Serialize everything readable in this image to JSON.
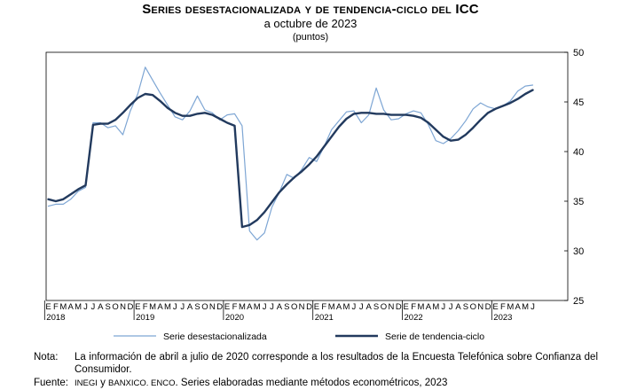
{
  "title": "Series desestacionalizada y de tendencia-ciclo del ICC",
  "subtitle": "a octubre de 2023",
  "units": "(puntos)",
  "note": {
    "label": "Nota:",
    "text": "La información de abril a julio de 2020 corresponde a los resultados de la Encuesta Telefónica sobre Confianza del Consumidor."
  },
  "source": {
    "label": "Fuente:",
    "org1": "INEGI",
    "conj": " y ",
    "org2": "BANXICO. ENCO",
    "text": ". Series elaboradas mediante métodos econométricos, 2023"
  },
  "colors": {
    "seasonal": "#7ea6d4",
    "trend": "#223a5e",
    "axis": "#000000"
  },
  "chart_data": {
    "type": "line",
    "yticks": [
      25,
      30,
      35,
      40,
      45,
      50
    ],
    "ylim": [
      25,
      50
    ],
    "month_letters": [
      "E",
      "F",
      "M",
      "A",
      "M",
      "J",
      "J",
      "A",
      "S",
      "O",
      "N",
      "D"
    ],
    "years": [
      "2018",
      "2019",
      "2020",
      "2021",
      "2022",
      "2023"
    ],
    "x_start": "2018-01",
    "x_end": "2023-10",
    "legend_position": "bottom",
    "series": [
      {
        "name": "Serie desestacionalizada",
        "style": "thin",
        "values": [
          34.5,
          34.7,
          34.7,
          35.2,
          36.0,
          36.4,
          42.9,
          42.9,
          42.4,
          42.6,
          41.7,
          44.1,
          45.8,
          48.5,
          47.2,
          45.9,
          44.7,
          43.5,
          43.2,
          44.1,
          45.6,
          44.2,
          43.9,
          43.2,
          43.7,
          43.8,
          42.6,
          32.0,
          31.1,
          31.8,
          34.4,
          35.9,
          37.7,
          37.3,
          38.2,
          39.4,
          39.0,
          40.5,
          42.2,
          43.1,
          44.0,
          44.1,
          42.9,
          43.7,
          46.4,
          44.2,
          43.2,
          43.3,
          43.8,
          44.1,
          43.9,
          42.7,
          41.1,
          40.8,
          41.3,
          42.1,
          43.1,
          44.3,
          44.9,
          44.5,
          44.3,
          44.6,
          45.1,
          46.1,
          46.6,
          46.7
        ]
      },
      {
        "name": "Serie de tendencia-ciclo",
        "style": "thick",
        "values": [
          35.2,
          35.0,
          35.2,
          35.7,
          36.2,
          36.6,
          42.7,
          42.8,
          42.8,
          43.2,
          43.9,
          44.7,
          45.4,
          45.8,
          45.7,
          45.1,
          44.4,
          43.9,
          43.6,
          43.6,
          43.8,
          43.9,
          43.7,
          43.3,
          42.9,
          42.6,
          32.4,
          32.6,
          33.1,
          33.9,
          34.9,
          35.9,
          36.7,
          37.4,
          38.0,
          38.7,
          39.5,
          40.5,
          41.5,
          42.5,
          43.3,
          43.8,
          43.9,
          43.9,
          43.8,
          43.8,
          43.7,
          43.7,
          43.7,
          43.6,
          43.4,
          42.9,
          42.2,
          41.5,
          41.1,
          41.2,
          41.7,
          42.4,
          43.2,
          43.9,
          44.3,
          44.6,
          44.9,
          45.3,
          45.8,
          46.2
        ]
      }
    ]
  }
}
